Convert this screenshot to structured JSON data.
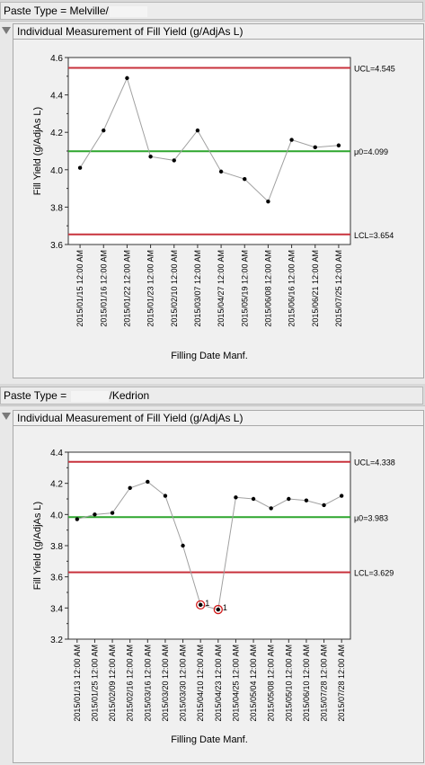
{
  "panels": [
    {
      "paste_type_prefix": "Paste Type = Melville/",
      "paste_type_suffix": "",
      "chart_title": "Individual Measurement of Fill Yield (g/AdjAs L)"
    },
    {
      "paste_type_prefix": "Paste Type = ",
      "paste_type_suffix": "/Kedrion",
      "chart_title": "Individual Measurement of Fill Yield (g/AdjAs L)"
    }
  ],
  "chart_data": [
    {
      "type": "line",
      "xlabel": "Filling Date Manf.",
      "ylabel": "Fill Yield (g/AdjAs L)",
      "ylim": [
        3.6,
        4.6
      ],
      "yticks": [
        "3.6",
        "3.8",
        "4.0",
        "4.2",
        "4.4",
        "4.6"
      ],
      "ytick_values": [
        3.6,
        3.8,
        4.0,
        4.2,
        4.4,
        4.6
      ],
      "categories": [
        "2015/01/15 12:00 AM",
        "2015/01/16 12:00 AM",
        "2015/01/22 12:00 AM",
        "2015/01/23 12:00 AM",
        "2015/02/10 12:00 AM",
        "2015/03/07 12:00 AM",
        "2015/04/27 12:00 AM",
        "2015/05/19 12:00 AM",
        "2015/06/08 12:00 AM",
        "2015/06/16 12:00 AM",
        "2015/06/21 12:00 AM",
        "2015/07/25 12:00 AM"
      ],
      "values": [
        4.01,
        4.21,
        4.49,
        4.07,
        4.05,
        4.21,
        3.99,
        3.95,
        3.83,
        4.16,
        4.12,
        4.13
      ],
      "flags": [
        "",
        "",
        "",
        "",
        "",
        "",
        "",
        "",
        "",
        "",
        "",
        ""
      ],
      "ucl": 4.545,
      "ucl_label": "UCL=4.545",
      "center": 4.099,
      "center_label": "μ0=4.099",
      "lcl": 3.654,
      "lcl_label": "LCL=3.654",
      "colors": {
        "limit": "#c8323c",
        "center": "#2ea62e",
        "line": "#a0a0a0",
        "point": "#000000",
        "flag": "#d01a1a"
      }
    },
    {
      "type": "line",
      "xlabel": "Filling Date Manf.",
      "ylabel": "Fill Yield (g/AdjAs L)",
      "ylim": [
        3.2,
        4.4
      ],
      "yticks": [
        "3.2",
        "3.4",
        "3.6",
        "3.8",
        "4.0",
        "4.2",
        "4.4"
      ],
      "ytick_values": [
        3.2,
        3.4,
        3.6,
        3.8,
        4.0,
        4.2,
        4.4
      ],
      "categories": [
        "2015/01/13 12:00 AM",
        "2015/01/25 12:00 AM",
        "2015/02/09 12:00 AM",
        "2015/02/16 12:00 AM",
        "2015/03/16 12:00 AM",
        "2015/03/20 12:00 AM",
        "2015/03/30 12:00 AM",
        "2015/04/10 12:00 AM",
        "2015/04/23 12:00 AM",
        "2015/04/25 12:00 AM",
        "2015/05/04 12:00 AM",
        "2015/05/08 12:00 AM",
        "2015/05/10 12:00 AM",
        "2015/06/10 12:00 AM",
        "2015/07/28 12:00 AM",
        "2015/07/28 12:00 AM"
      ],
      "values": [
        3.97,
        4.0,
        4.01,
        4.17,
        4.21,
        4.12,
        3.8,
        3.42,
        3.39,
        4.11,
        4.1,
        4.04,
        4.1,
        4.09,
        4.06,
        4.12
      ],
      "flags": [
        "",
        "",
        "",
        "",
        "",
        "",
        "",
        "1",
        "1",
        "",
        "",
        "",
        "",
        "",
        "",
        ""
      ],
      "ucl": 4.338,
      "ucl_label": "UCL=4.338",
      "center": 3.983,
      "center_label": "μ0=3.983",
      "lcl": 3.629,
      "lcl_label": "LCL=3.629",
      "colors": {
        "limit": "#c8323c",
        "center": "#2ea62e",
        "line": "#a0a0a0",
        "point": "#000000",
        "flag": "#d01a1a"
      }
    }
  ]
}
